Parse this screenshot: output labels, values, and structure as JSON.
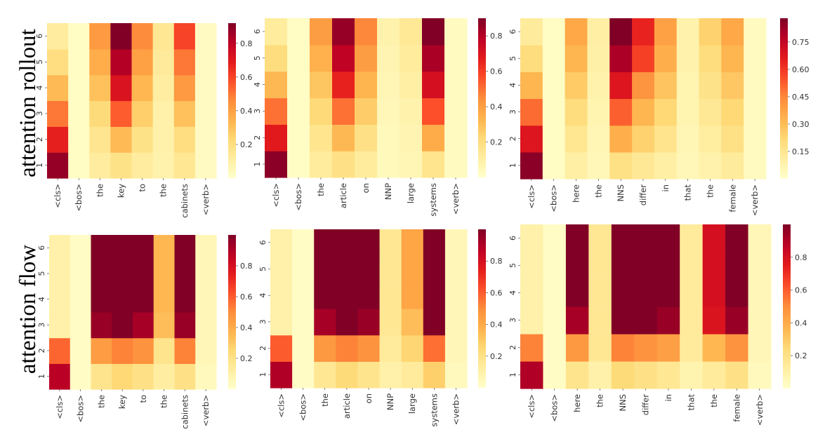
{
  "row_labels": [
    "attention rollout",
    "attention flow"
  ],
  "colormap": {
    "name": "YlOrRd",
    "stops": [
      "#ffffcc",
      "#ffeda0",
      "#fed976",
      "#feb24c",
      "#fd8d3c",
      "#fc4e2a",
      "#e31a1c",
      "#bd0026",
      "#800026"
    ]
  },
  "chart_data": [
    {
      "type": "heatmap",
      "title": "attention rollout",
      "row": 0,
      "col": 0,
      "x_labels": [
        "<cls>",
        "<bos>",
        "the",
        "key",
        "to",
        "the",
        "cabinets",
        "<verb>"
      ],
      "y_labels": [
        "1",
        "2",
        "3",
        "4",
        "5",
        "6"
      ],
      "vmin": 0.0,
      "vmax": 0.92,
      "colorbar_ticks": [
        0.2,
        0.4,
        0.6,
        0.8
      ],
      "colorbar_labels": [
        "0.2",
        "0.4",
        "0.6",
        "0.8"
      ],
      "matrix": [
        [
          0.88,
          0.02,
          0.12,
          0.18,
          0.12,
          0.08,
          0.15,
          0.03
        ],
        [
          0.68,
          0.02,
          0.16,
          0.32,
          0.18,
          0.09,
          0.2,
          0.03
        ],
        [
          0.5,
          0.02,
          0.22,
          0.55,
          0.26,
          0.09,
          0.3,
          0.03
        ],
        [
          0.32,
          0.02,
          0.3,
          0.72,
          0.33,
          0.11,
          0.42,
          0.03
        ],
        [
          0.2,
          0.02,
          0.36,
          0.82,
          0.4,
          0.13,
          0.5,
          0.03
        ],
        [
          0.12,
          0.02,
          0.42,
          0.92,
          0.46,
          0.15,
          0.6,
          0.03
        ]
      ]
    },
    {
      "type": "heatmap",
      "title": "attention rollout",
      "row": 0,
      "col": 1,
      "x_labels": [
        "<cls>",
        "<bos>",
        "the",
        "article",
        "on",
        "NNP",
        "large",
        "systems",
        "<verb>"
      ],
      "y_labels": [
        "1",
        "2",
        "3",
        "4",
        "5",
        "6"
      ],
      "vmin": 0.0,
      "vmax": 0.9,
      "colorbar_ticks": [
        0.2,
        0.4,
        0.6,
        0.8
      ],
      "colorbar_labels": [
        "0.2",
        "0.4",
        "0.6",
        "0.8"
      ],
      "matrix": [
        [
          0.88,
          0.02,
          0.12,
          0.18,
          0.12,
          0.04,
          0.06,
          0.16,
          0.03
        ],
        [
          0.68,
          0.02,
          0.16,
          0.32,
          0.18,
          0.04,
          0.07,
          0.36,
          0.03
        ],
        [
          0.5,
          0.02,
          0.22,
          0.5,
          0.26,
          0.05,
          0.08,
          0.56,
          0.03
        ],
        [
          0.32,
          0.02,
          0.28,
          0.66,
          0.33,
          0.06,
          0.1,
          0.72,
          0.03
        ],
        [
          0.2,
          0.02,
          0.34,
          0.78,
          0.4,
          0.07,
          0.12,
          0.82,
          0.03
        ],
        [
          0.12,
          0.02,
          0.4,
          0.86,
          0.46,
          0.08,
          0.14,
          0.9,
          0.03
        ]
      ]
    },
    {
      "type": "heatmap",
      "title": "attention rollout",
      "row": 0,
      "col": 2,
      "x_labels": [
        "<cls>",
        "<bos>",
        "here",
        "the",
        "NNS",
        "differ",
        "in",
        "that",
        "the",
        "female",
        "<verb>"
      ],
      "y_labels": [
        "1",
        "2",
        "3",
        "4",
        "5",
        "6"
      ],
      "vmin": 0.0,
      "vmax": 0.88,
      "colorbar_ticks": [
        0.15,
        0.3,
        0.45,
        0.6,
        0.75
      ],
      "colorbar_labels": [
        "0.15",
        "0.30",
        "0.45",
        "0.60",
        "0.75"
      ],
      "matrix": [
        [
          0.86,
          0.02,
          0.1,
          0.05,
          0.18,
          0.14,
          0.1,
          0.05,
          0.08,
          0.12,
          0.03
        ],
        [
          0.68,
          0.02,
          0.15,
          0.06,
          0.34,
          0.24,
          0.16,
          0.06,
          0.11,
          0.18,
          0.03
        ],
        [
          0.5,
          0.02,
          0.2,
          0.07,
          0.52,
          0.32,
          0.22,
          0.07,
          0.14,
          0.22,
          0.03
        ],
        [
          0.32,
          0.02,
          0.26,
          0.08,
          0.68,
          0.42,
          0.28,
          0.07,
          0.17,
          0.27,
          0.03
        ],
        [
          0.2,
          0.02,
          0.32,
          0.09,
          0.8,
          0.58,
          0.34,
          0.08,
          0.2,
          0.32,
          0.03
        ],
        [
          0.12,
          0.02,
          0.36,
          0.1,
          0.88,
          0.64,
          0.38,
          0.08,
          0.24,
          0.36,
          0.03
        ]
      ]
    },
    {
      "type": "heatmap",
      "title": "attention flow",
      "row": 1,
      "col": 0,
      "x_labels": [
        "<cls>",
        "<bos>",
        "the",
        "key",
        "to",
        "the",
        "cabinets",
        "<verb>"
      ],
      "y_labels": [
        "1",
        "2",
        "3",
        "4",
        "5",
        "6"
      ],
      "vmin": 0.0,
      "vmax": 1.0,
      "colorbar_ticks": [
        0.2,
        0.4,
        0.6,
        0.8
      ],
      "colorbar_labels": [
        "0.2",
        "0.4",
        "0.6",
        "0.8"
      ],
      "matrix": [
        [
          0.88,
          0.02,
          0.18,
          0.25,
          0.2,
          0.12,
          0.2,
          0.04
        ],
        [
          0.58,
          0.02,
          0.45,
          0.52,
          0.48,
          0.18,
          0.52,
          0.06
        ],
        [
          0.1,
          0.02,
          0.95,
          1.0,
          0.92,
          0.34,
          0.95,
          0.06
        ],
        [
          0.1,
          0.02,
          1.0,
          1.0,
          1.0,
          0.36,
          1.0,
          0.06
        ],
        [
          0.1,
          0.02,
          1.0,
          1.0,
          1.0,
          0.36,
          1.0,
          0.06
        ],
        [
          0.1,
          0.02,
          1.0,
          1.0,
          1.0,
          0.36,
          1.0,
          0.06
        ]
      ]
    },
    {
      "type": "heatmap",
      "title": "attention flow",
      "row": 1,
      "col": 1,
      "x_labels": [
        "<cls>",
        "<bos>",
        "the",
        "article",
        "on",
        "NNP",
        "large",
        "systems",
        "<verb>"
      ],
      "y_labels": [
        "1",
        "2",
        "3",
        "4",
        "5",
        "6"
      ],
      "vmin": 0.0,
      "vmax": 1.0,
      "colorbar_ticks": [
        0.2,
        0.4,
        0.6,
        0.8
      ],
      "colorbar_labels": [
        "0.2",
        "0.4",
        "0.6",
        "0.8"
      ],
      "matrix": [
        [
          0.9,
          0.02,
          0.16,
          0.24,
          0.18,
          0.1,
          0.14,
          0.28,
          0.04
        ],
        [
          0.6,
          0.02,
          0.46,
          0.52,
          0.48,
          0.14,
          0.26,
          0.56,
          0.06
        ],
        [
          0.1,
          0.02,
          0.92,
          1.0,
          0.95,
          0.16,
          0.34,
          1.0,
          0.06
        ],
        [
          0.1,
          0.02,
          1.0,
          1.0,
          1.0,
          0.16,
          0.42,
          1.0,
          0.06
        ],
        [
          0.1,
          0.02,
          1.0,
          1.0,
          1.0,
          0.16,
          0.42,
          1.0,
          0.06
        ],
        [
          0.1,
          0.02,
          1.0,
          1.0,
          1.0,
          0.16,
          0.42,
          1.0,
          0.06
        ]
      ]
    },
    {
      "type": "heatmap",
      "title": "attention flow",
      "row": 1,
      "col": 2,
      "x_labels": [
        "<cls>",
        "<bos>",
        "here",
        "the",
        "NNS",
        "differ",
        "in",
        "that",
        "the",
        "female",
        "<verb>"
      ],
      "y_labels": [
        "1",
        "2",
        "3",
        "4",
        "5",
        "6"
      ],
      "vmin": 0.0,
      "vmax": 1.0,
      "colorbar_ticks": [
        0.2,
        0.4,
        0.6,
        0.8
      ],
      "colorbar_labels": [
        "0.2",
        "0.4",
        "0.6",
        "0.8"
      ],
      "matrix": [
        [
          0.9,
          0.02,
          0.18,
          0.1,
          0.24,
          0.2,
          0.16,
          0.08,
          0.14,
          0.2,
          0.04
        ],
        [
          0.52,
          0.02,
          0.46,
          0.16,
          0.52,
          0.48,
          0.44,
          0.14,
          0.36,
          0.48,
          0.06
        ],
        [
          0.1,
          0.02,
          0.92,
          0.16,
          1.0,
          1.0,
          0.95,
          0.14,
          0.78,
          0.95,
          0.06
        ],
        [
          0.1,
          0.02,
          1.0,
          0.16,
          1.0,
          1.0,
          1.0,
          0.14,
          0.8,
          1.0,
          0.06
        ],
        [
          0.1,
          0.02,
          1.0,
          0.16,
          1.0,
          1.0,
          1.0,
          0.14,
          0.8,
          1.0,
          0.06
        ],
        [
          0.1,
          0.02,
          1.0,
          0.16,
          1.0,
          1.0,
          1.0,
          0.14,
          0.8,
          1.0,
          0.06
        ]
      ]
    }
  ]
}
